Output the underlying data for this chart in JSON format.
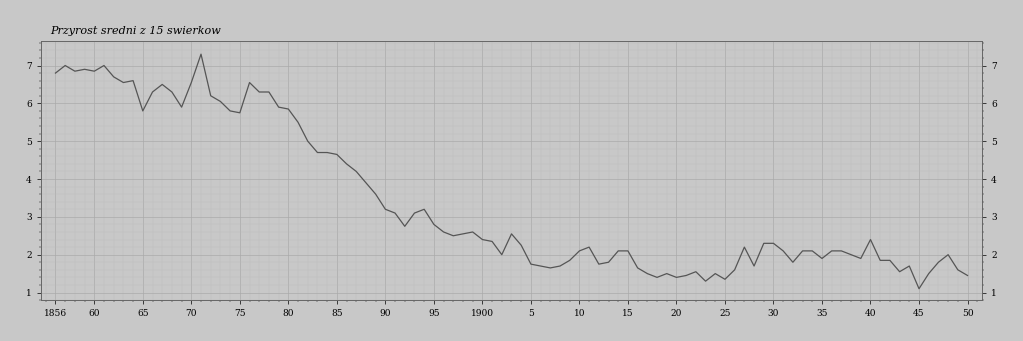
{
  "title": "Przyrost sredni z 15 swierkow",
  "years": [
    1856,
    1857,
    1858,
    1859,
    1860,
    1861,
    1862,
    1863,
    1864,
    1865,
    1866,
    1867,
    1868,
    1869,
    1870,
    1871,
    1872,
    1873,
    1874,
    1875,
    1876,
    1877,
    1878,
    1879,
    1880,
    1881,
    1882,
    1883,
    1884,
    1885,
    1886,
    1887,
    1888,
    1889,
    1890,
    1891,
    1892,
    1893,
    1894,
    1895,
    1896,
    1897,
    1898,
    1899,
    1900,
    1901,
    1902,
    1903,
    1904,
    1905,
    1906,
    1907,
    1908,
    1909,
    1910,
    1911,
    1912,
    1913,
    1914,
    1915,
    1916,
    1917,
    1918,
    1919,
    1920,
    1921,
    1922,
    1923,
    1924,
    1925,
    1926,
    1927,
    1928,
    1929,
    1930,
    1931,
    1932,
    1933,
    1934,
    1935,
    1936,
    1937,
    1938,
    1939,
    1940,
    1941,
    1942,
    1943,
    1944,
    1945,
    1946,
    1947,
    1948,
    1949,
    1950
  ],
  "values": [
    6.8,
    7.0,
    6.85,
    6.9,
    6.85,
    7.0,
    6.7,
    6.55,
    6.6,
    5.8,
    6.3,
    6.5,
    6.3,
    5.9,
    6.55,
    7.3,
    6.2,
    6.05,
    5.8,
    5.75,
    6.55,
    6.3,
    6.3,
    5.9,
    5.85,
    5.5,
    5.0,
    4.7,
    4.7,
    4.65,
    4.4,
    4.2,
    3.9,
    3.6,
    3.2,
    3.1,
    2.75,
    3.1,
    3.2,
    2.8,
    2.6,
    2.5,
    2.55,
    2.6,
    2.4,
    2.35,
    2.0,
    2.55,
    2.25,
    1.75,
    1.7,
    1.65,
    1.7,
    1.85,
    2.1,
    2.2,
    1.75,
    1.8,
    2.1,
    2.1,
    1.65,
    1.5,
    1.4,
    1.5,
    1.4,
    1.45,
    1.55,
    1.3,
    1.5,
    1.35,
    1.6,
    2.2,
    1.7,
    2.3,
    2.3,
    2.1,
    1.8,
    2.1,
    2.1,
    1.9,
    2.1,
    2.1,
    2.0,
    1.9,
    2.4,
    1.85,
    1.85,
    1.55,
    1.7,
    1.1,
    1.5,
    1.8,
    2.0,
    1.6,
    1.45
  ],
  "xtick_years": [
    1856,
    1860,
    1865,
    1870,
    1875,
    1880,
    1885,
    1890,
    1895,
    1900,
    1905,
    1910,
    1915,
    1920,
    1925,
    1930,
    1935,
    1940,
    1945,
    1950
  ],
  "xtick_labels": [
    "1856",
    "60",
    "65",
    "70",
    "75",
    "80",
    "85",
    "90",
    "95",
    "1900",
    "5",
    "10",
    "15",
    "20",
    "25",
    "30",
    "35",
    "40",
    "45",
    "50"
  ],
  "yticks": [
    1,
    2,
    3,
    4,
    5,
    6,
    7
  ],
  "ylim": [
    0.8,
    7.65
  ],
  "xlim": [
    1854.5,
    1951.5
  ],
  "line_color": "#555555",
  "line_width": 0.9,
  "bg_color": "#c8c8c8",
  "minor_grid_color": "#bbbbbb",
  "major_grid_color": "#aaaaaa",
  "title_fontsize": 8,
  "tick_fontsize": 6.5
}
